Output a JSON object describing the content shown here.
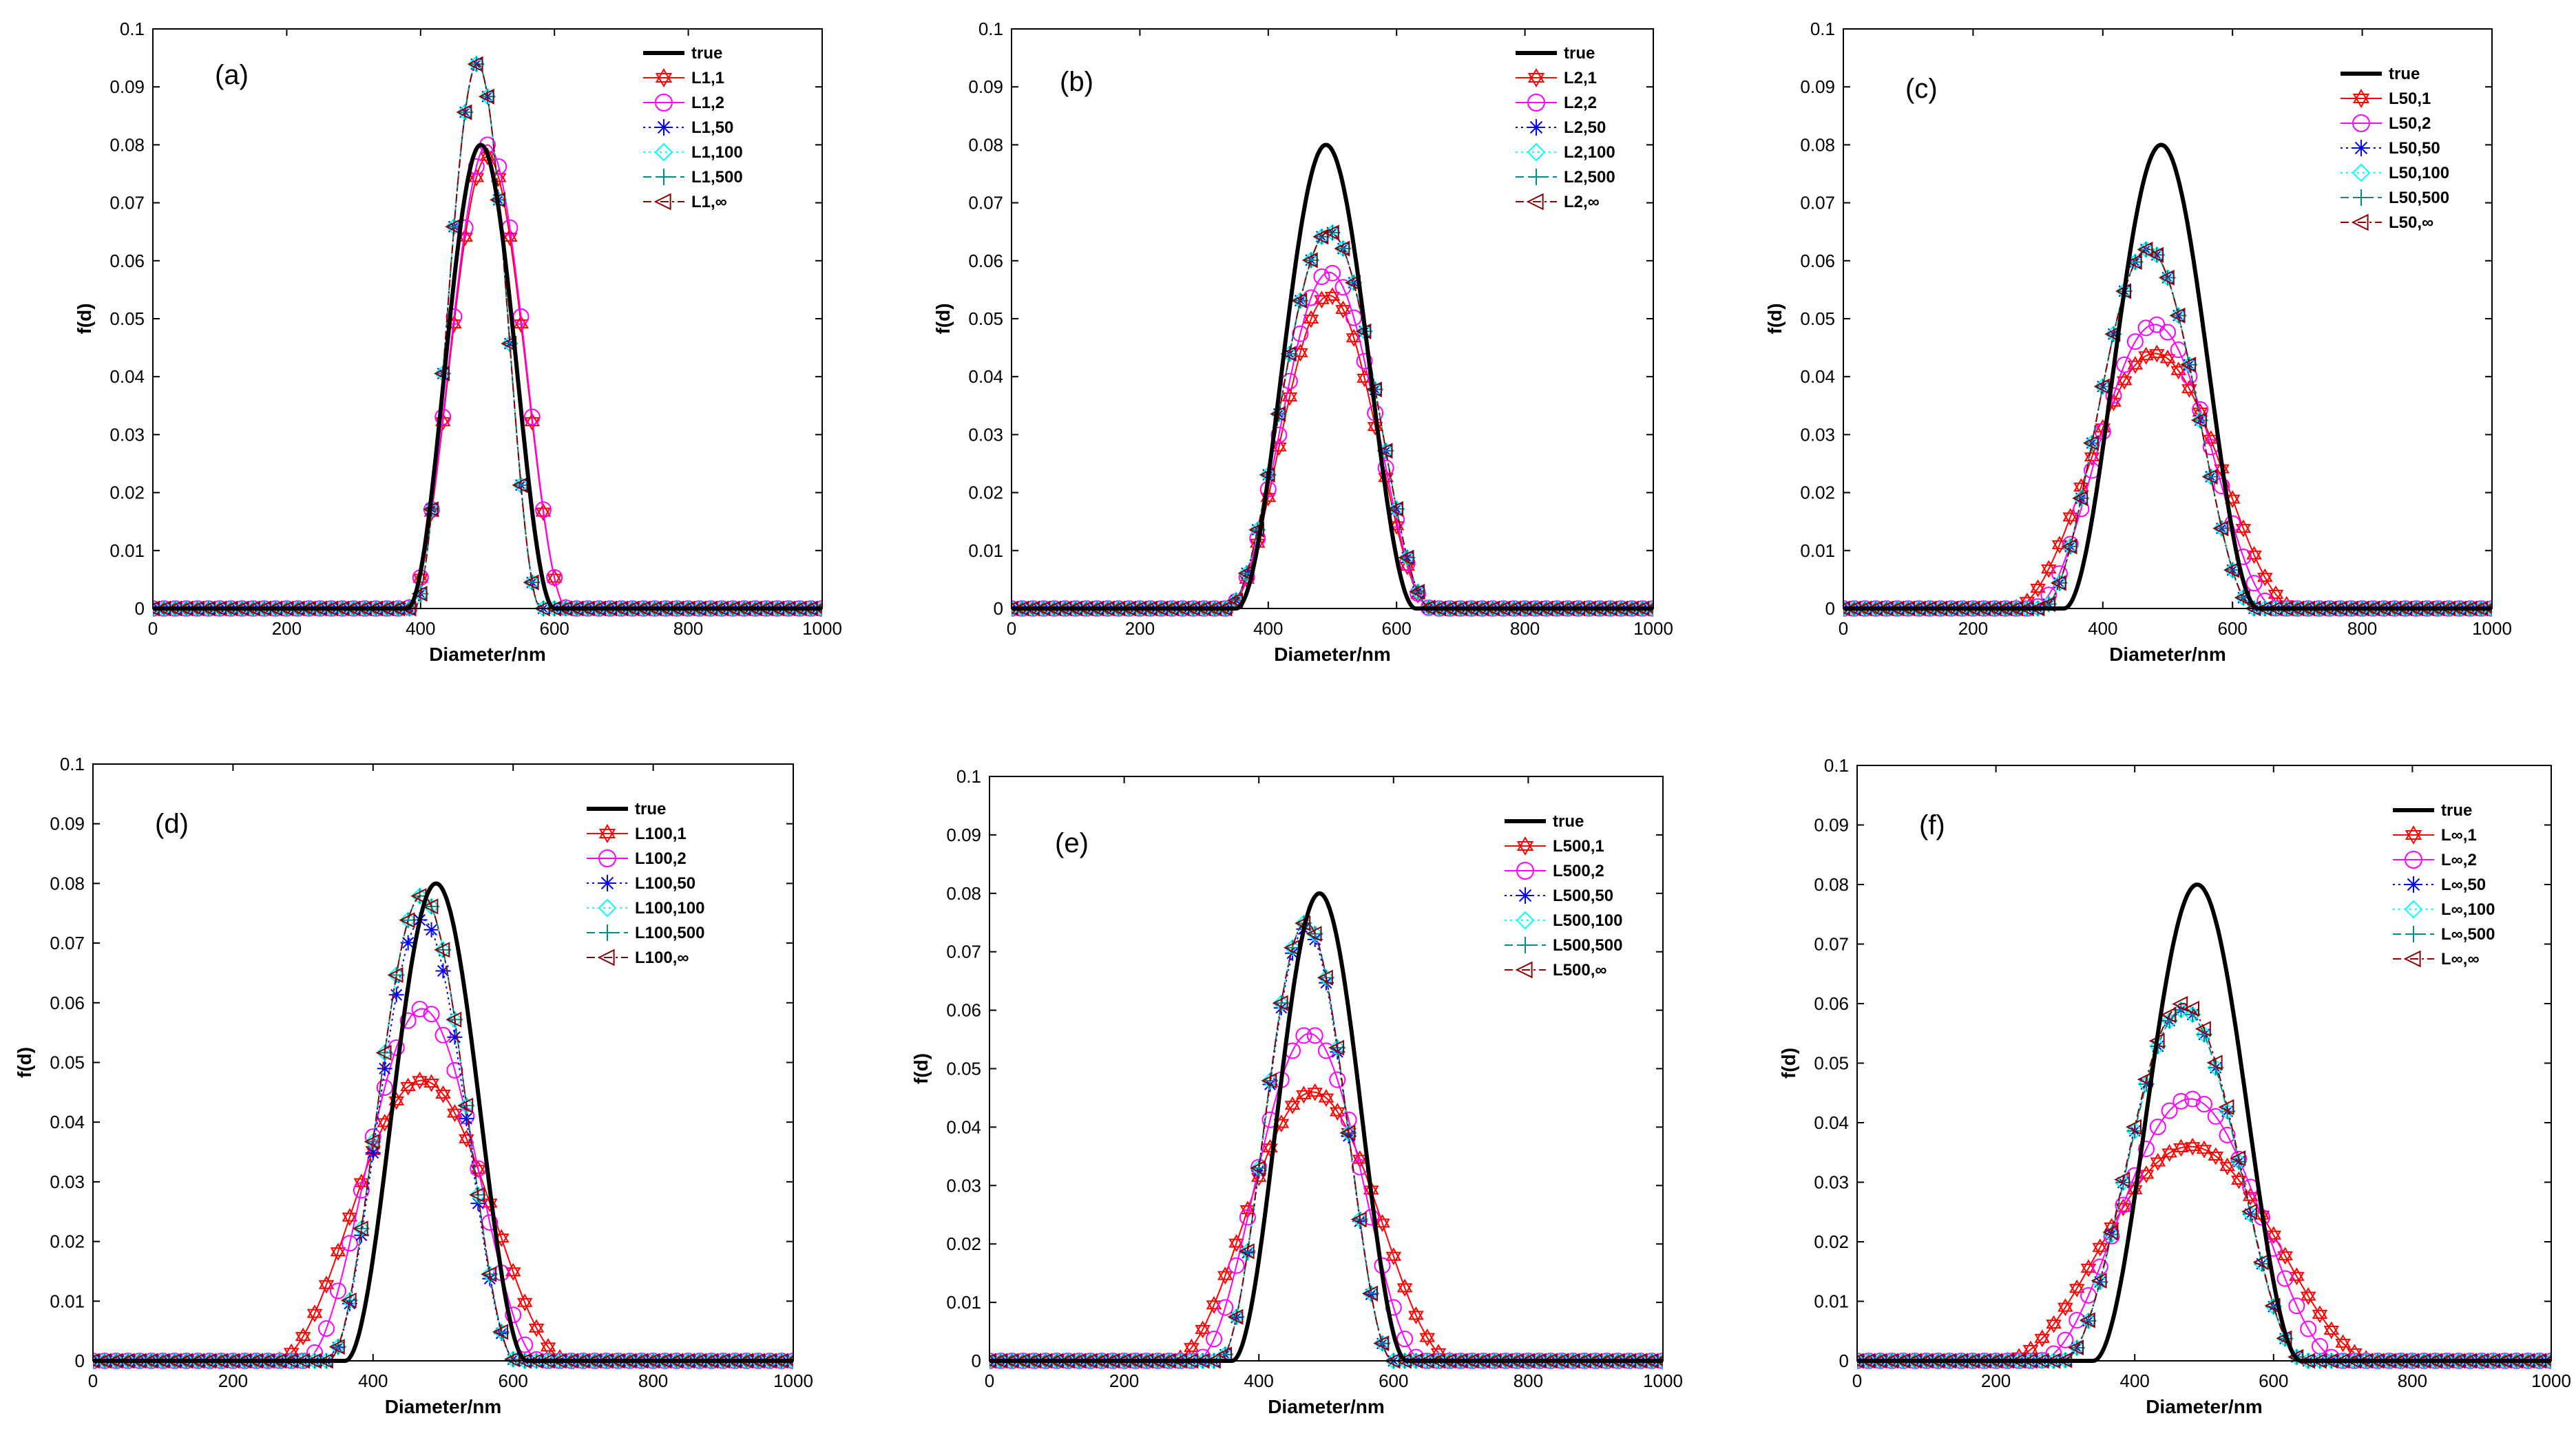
{
  "chart_data": [
    {
      "type": "line",
      "panel_label": "(a)",
      "xlabel": "Diameter/nm",
      "ylabel": "f(d)",
      "xlim": [
        0,
        1000
      ],
      "ylim": [
        0,
        0.1
      ],
      "xticks": [
        "0",
        "200",
        "400",
        "600",
        "800",
        "1000"
      ],
      "yticks": [
        "0",
        "0.01",
        "0.02",
        "0.03",
        "0.04",
        "0.05",
        "0.06",
        "0.07",
        "0.08",
        "0.09",
        "0.1"
      ],
      "legend_position": "top-right",
      "true_curve": {
        "name": "true",
        "mean": 490,
        "halfwidth": 110,
        "peak": 0.08
      },
      "series": [
        {
          "name": "L1,1",
          "mean": 500,
          "halfwidth": 120,
          "peak": 0.078,
          "marker": "star",
          "color": "#ff0000",
          "dash": ""
        },
        {
          "name": "L1,2",
          "mean": 500,
          "halfwidth": 120,
          "peak": 0.08,
          "marker": "circle",
          "color": "#ff00ff",
          "dash": ""
        },
        {
          "name": "L1,50",
          "mean": 485,
          "halfwidth": 95,
          "peak": 0.094,
          "marker": "asterisk",
          "color": "#0000ff",
          "dash": "3,5"
        },
        {
          "name": "L1,100",
          "mean": 485,
          "halfwidth": 95,
          "peak": 0.094,
          "marker": "diamond",
          "color": "#00ffff",
          "dash": "3,5"
        },
        {
          "name": "L1,500",
          "mean": 485,
          "halfwidth": 95,
          "peak": 0.094,
          "marker": "plus",
          "color": "#008b8b",
          "dash": "12,6"
        },
        {
          "name": "L1,∞",
          "mean": 485,
          "halfwidth": 95,
          "peak": 0.094,
          "marker": "triangle",
          "color": "#8b0000",
          "dash": "12,5,3,5"
        }
      ]
    },
    {
      "type": "line",
      "panel_label": "(b)",
      "xlabel": "Diameter/nm",
      "ylabel": "f(d)",
      "xlim": [
        0,
        1000
      ],
      "ylim": [
        0,
        0.1
      ],
      "xticks": [
        "0",
        "200",
        "400",
        "600",
        "800",
        "1000"
      ],
      "yticks": [
        "0",
        "0.01",
        "0.02",
        "0.03",
        "0.04",
        "0.05",
        "0.06",
        "0.07",
        "0.08",
        "0.09",
        "0.1"
      ],
      "legend_position": "top-right",
      "true_curve": {
        "name": "true",
        "mean": 490,
        "halfwidth": 140,
        "peak": 0.08
      },
      "series": [
        {
          "name": "L2,1",
          "mean": 495,
          "halfwidth": 160,
          "peak": 0.054,
          "marker": "star",
          "color": "#ff0000",
          "dash": ""
        },
        {
          "name": "L2,2",
          "mean": 495,
          "halfwidth": 160,
          "peak": 0.058,
          "marker": "circle",
          "color": "#ff00ff",
          "dash": ""
        },
        {
          "name": "L2,50",
          "mean": 495,
          "halfwidth": 160,
          "peak": 0.065,
          "marker": "asterisk",
          "color": "#0000ff",
          "dash": "3,5"
        },
        {
          "name": "L2,100",
          "mean": 495,
          "halfwidth": 160,
          "peak": 0.065,
          "marker": "diamond",
          "color": "#00ffff",
          "dash": "3,5"
        },
        {
          "name": "L2,500",
          "mean": 495,
          "halfwidth": 160,
          "peak": 0.065,
          "marker": "plus",
          "color": "#008b8b",
          "dash": "12,6"
        },
        {
          "name": "L2,∞",
          "mean": 495,
          "halfwidth": 160,
          "peak": 0.065,
          "marker": "triangle",
          "color": "#8b0000",
          "dash": "12,5,3,5"
        }
      ]
    },
    {
      "type": "line",
      "panel_label": "(c)",
      "xlabel": "Diameter/nm",
      "ylabel": "f(d)",
      "xlim": [
        0,
        1000
      ],
      "ylim": [
        0,
        0.1
      ],
      "xticks": [
        "0",
        "200",
        "400",
        "600",
        "800",
        "1000"
      ],
      "yticks": [
        "0",
        "0.01",
        "0.02",
        "0.03",
        "0.04",
        "0.05",
        "0.06",
        "0.07",
        "0.08",
        "0.09",
        "0.1"
      ],
      "legend_position": "top-right",
      "true_curve": {
        "name": "true",
        "mean": 490,
        "halfwidth": 150,
        "peak": 0.08
      },
      "series": [
        {
          "name": "L50,1",
          "mean": 480,
          "halfwidth": 220,
          "peak": 0.044,
          "marker": "star",
          "color": "#ff0000",
          "dash": ""
        },
        {
          "name": "L50,2",
          "mean": 480,
          "halfwidth": 190,
          "peak": 0.049,
          "marker": "circle",
          "color": "#ff00ff",
          "dash": ""
        },
        {
          "name": "L50,50",
          "mean": 470,
          "halfwidth": 165,
          "peak": 0.062,
          "marker": "asterisk",
          "color": "#0000ff",
          "dash": "3,5"
        },
        {
          "name": "L50,100",
          "mean": 470,
          "halfwidth": 165,
          "peak": 0.062,
          "marker": "diamond",
          "color": "#00ffff",
          "dash": "3,5"
        },
        {
          "name": "L50,500",
          "mean": 470,
          "halfwidth": 165,
          "peak": 0.062,
          "marker": "plus",
          "color": "#008b8b",
          "dash": "12,6"
        },
        {
          "name": "L50,∞",
          "mean": 470,
          "halfwidth": 165,
          "peak": 0.062,
          "marker": "triangle",
          "color": "#8b0000",
          "dash": "12,5,3,5"
        }
      ]
    },
    {
      "type": "line",
      "panel_label": "(d)",
      "xlabel": "Diameter/nm",
      "ylabel": "f(d)",
      "xlim": [
        0,
        1000
      ],
      "ylim": [
        0,
        0.1
      ],
      "xticks": [
        "0",
        "200",
        "400",
        "600",
        "800",
        "1000"
      ],
      "yticks": [
        "0",
        "0.01",
        "0.02",
        "0.03",
        "0.04",
        "0.05",
        "0.06",
        "0.07",
        "0.08",
        "0.09",
        "0.1"
      ],
      "legend_position": "top-right",
      "true_curve": {
        "name": "true",
        "mean": 490,
        "halfwidth": 130,
        "peak": 0.08
      },
      "series": [
        {
          "name": "L100,1",
          "mean": 470,
          "halfwidth": 210,
          "peak": 0.047,
          "marker": "star",
          "color": "#ff0000",
          "dash": ""
        },
        {
          "name": "L100,2",
          "mean": 470,
          "halfwidth": 170,
          "peak": 0.059,
          "marker": "circle",
          "color": "#ff00ff",
          "dash": ""
        },
        {
          "name": "L100,50",
          "mean": 470,
          "halfwidth": 135,
          "peak": 0.074,
          "marker": "asterisk",
          "color": "#0000ff",
          "dash": "3,5"
        },
        {
          "name": "L100,100",
          "mean": 470,
          "halfwidth": 135,
          "peak": 0.078,
          "marker": "diamond",
          "color": "#00ffff",
          "dash": "3,5"
        },
        {
          "name": "L100,500",
          "mean": 470,
          "halfwidth": 135,
          "peak": 0.078,
          "marker": "plus",
          "color": "#008b8b",
          "dash": "12,6"
        },
        {
          "name": "L100,∞",
          "mean": 470,
          "halfwidth": 135,
          "peak": 0.078,
          "marker": "triangle",
          "color": "#8b0000",
          "dash": "12,5,3,5"
        }
      ]
    },
    {
      "type": "line",
      "panel_label": "(e)",
      "xlabel": "Diameter/nm",
      "ylabel": "f(d)",
      "xlim": [
        0,
        1000
      ],
      "ylim": [
        0,
        0.1
      ],
      "xticks": [
        "0",
        "200",
        "400",
        "600",
        "800",
        "1000"
      ],
      "yticks": [
        "0",
        "0.01",
        "0.02",
        "0.03",
        "0.04",
        "0.05",
        "0.06",
        "0.07",
        "0.08",
        "0.09",
        "0.1"
      ],
      "legend_position": "top-right",
      "true_curve": {
        "name": "true",
        "mean": 490,
        "halfwidth": 130,
        "peak": 0.08
      },
      "series": [
        {
          "name": "L500,1",
          "mean": 480,
          "halfwidth": 210,
          "peak": 0.046,
          "marker": "star",
          "color": "#ff0000",
          "dash": ""
        },
        {
          "name": "L500,2",
          "mean": 475,
          "halfwidth": 170,
          "peak": 0.056,
          "marker": "circle",
          "color": "#ff00ff",
          "dash": ""
        },
        {
          "name": "L500,50",
          "mean": 470,
          "halfwidth": 130,
          "peak": 0.074,
          "marker": "asterisk",
          "color": "#0000ff",
          "dash": "3,5"
        },
        {
          "name": "L500,100",
          "mean": 470,
          "halfwidth": 130,
          "peak": 0.075,
          "marker": "diamond",
          "color": "#00ffff",
          "dash": "3,5"
        },
        {
          "name": "L500,500",
          "mean": 470,
          "halfwidth": 130,
          "peak": 0.075,
          "marker": "plus",
          "color": "#008b8b",
          "dash": "12,6"
        },
        {
          "name": "L500,∞",
          "mean": 470,
          "halfwidth": 130,
          "peak": 0.075,
          "marker": "triangle",
          "color": "#8b0000",
          "dash": "12,5,3,5"
        }
      ]
    },
    {
      "type": "line",
      "panel_label": "(f)",
      "xlabel": "Diameter/nm",
      "ylabel": "f(d)",
      "xlim": [
        0,
        1000
      ],
      "ylim": [
        0,
        0.1
      ],
      "xticks": [
        "0",
        "200",
        "400",
        "600",
        "800",
        "1000"
      ],
      "yticks": [
        "0",
        "0.01",
        "0.02",
        "0.03",
        "0.04",
        "0.05",
        "0.06",
        "0.07",
        "0.08",
        "0.09",
        "0.1"
      ],
      "legend_position": "top-right",
      "true_curve": {
        "name": "true",
        "mean": 490,
        "halfwidth": 150,
        "peak": 0.08
      },
      "series": [
        {
          "name": "L∞,1",
          "mean": 480,
          "halfwidth": 270,
          "peak": 0.036,
          "marker": "star",
          "color": "#ff0000",
          "dash": ""
        },
        {
          "name": "L∞,2",
          "mean": 480,
          "halfwidth": 220,
          "peak": 0.044,
          "marker": "circle",
          "color": "#ff00ff",
          "dash": ""
        },
        {
          "name": "L∞,50",
          "mean": 470,
          "halfwidth": 175,
          "peak": 0.059,
          "marker": "asterisk",
          "color": "#0000ff",
          "dash": "3,5"
        },
        {
          "name": "L∞,100",
          "mean": 470,
          "halfwidth": 175,
          "peak": 0.059,
          "marker": "diamond",
          "color": "#00ffff",
          "dash": "3,5"
        },
        {
          "name": "L∞,500",
          "mean": 470,
          "halfwidth": 175,
          "peak": 0.059,
          "marker": "plus",
          "color": "#008b8b",
          "dash": "12,6"
        },
        {
          "name": "L∞,∞",
          "mean": 470,
          "halfwidth": 175,
          "peak": 0.06,
          "marker": "triangle",
          "color": "#8b0000",
          "dash": "12,5,3,5"
        }
      ]
    }
  ]
}
